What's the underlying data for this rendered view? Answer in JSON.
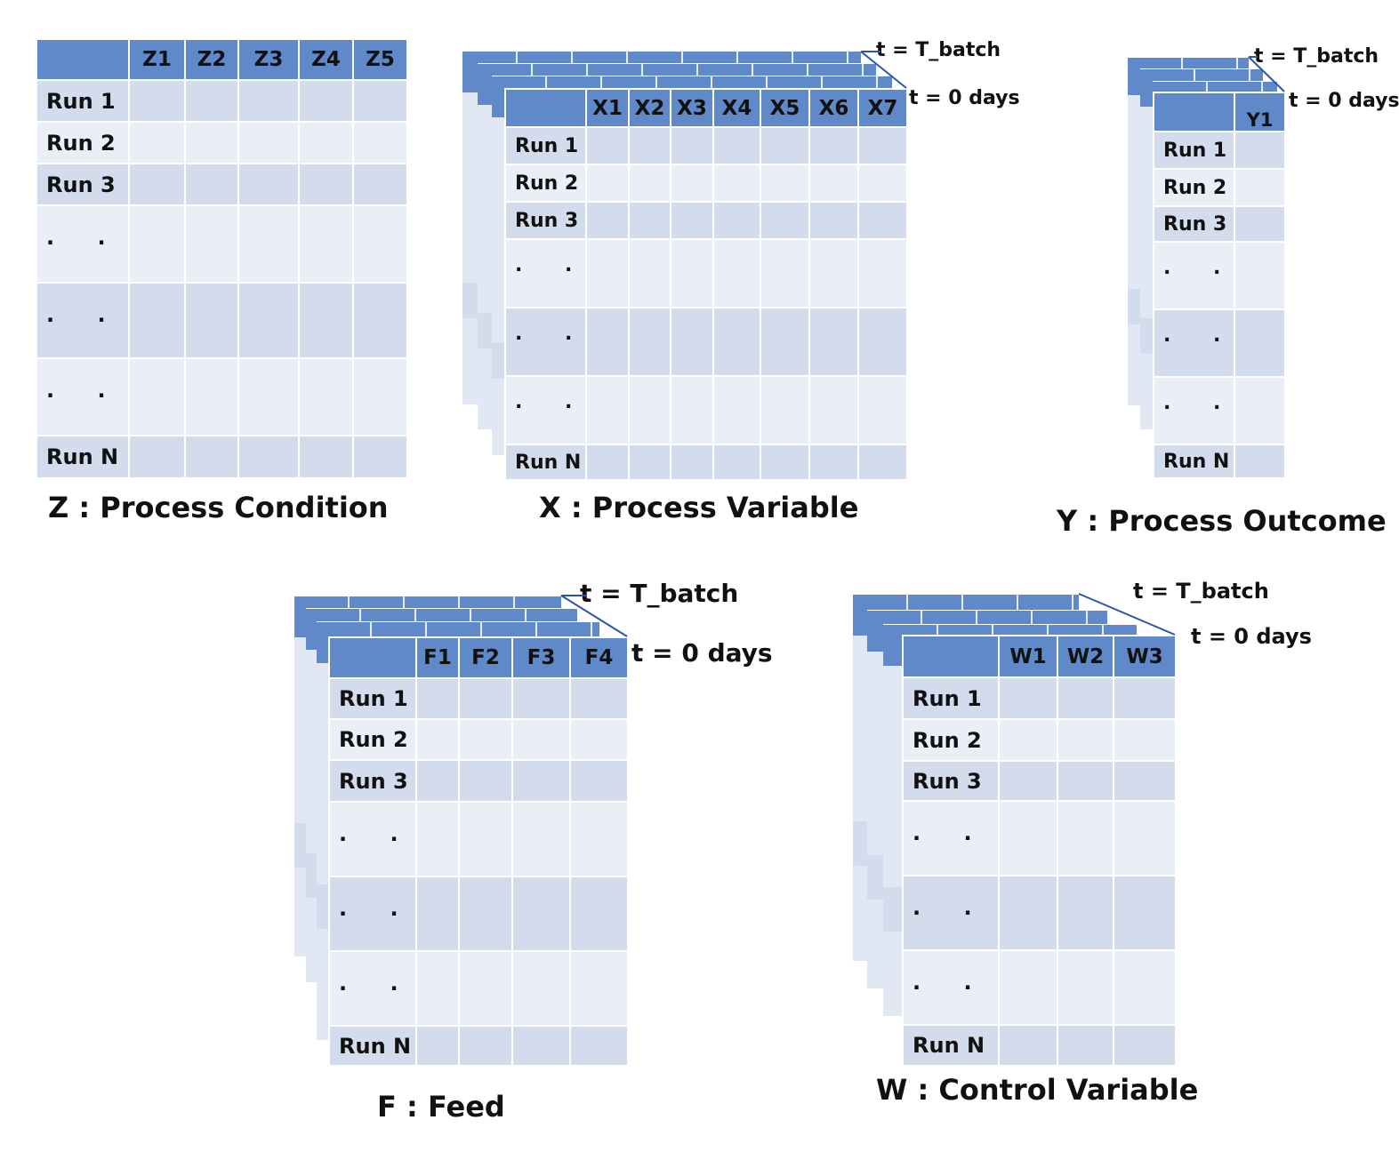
{
  "z": {
    "columns": [
      "Z1",
      "Z2",
      "Z3",
      "Z4",
      "Z5"
    ],
    "rows": [
      "Run 1",
      "Run 2",
      "Run 3",
      ". .",
      ". .",
      ". .",
      "Run N"
    ],
    "caption": "Z : Process Condition"
  },
  "x": {
    "columns": [
      "X1",
      "X2",
      "X3",
      "X4",
      "X5",
      "X6",
      "X7"
    ],
    "rows": [
      "Run 1",
      "Run 2",
      "Run 3",
      ". .",
      ". .",
      ". .",
      "Run N"
    ],
    "caption": "X : Process Variable",
    "t_end": "t = T_batch",
    "t_start": "t = 0 days"
  },
  "y": {
    "columns": [
      "Y1"
    ],
    "rows": [
      "Run 1",
      "Run 2",
      "Run 3",
      ". .",
      ". .",
      ". .",
      "Run N"
    ],
    "caption": "Y : Process Outcome",
    "t_end": "t = T_batch",
    "t_start": "t = 0 days"
  },
  "f": {
    "columns": [
      "F1",
      "F2",
      "F3",
      "F4"
    ],
    "rows": [
      "Run 1",
      "Run 2",
      "Run 3",
      ". .",
      ". .",
      ". .",
      "Run N"
    ],
    "caption": "F : Feed",
    "t_end": "t = T_batch",
    "t_start": "t = 0 days"
  },
  "w": {
    "columns": [
      "W1",
      "W2",
      "W3"
    ],
    "rows": [
      "Run 1",
      "Run 2",
      "Run 3",
      ". .",
      ". .",
      ". .",
      "Run N"
    ],
    "caption": "W : Control Variable",
    "t_end": "t = T_batch",
    "t_start": "t = 0 days"
  },
  "colors": {
    "header": "#5f89c9",
    "band_dark": "#d2dcec",
    "band_light": "#e9eef7",
    "connector": "#2b55a8"
  }
}
